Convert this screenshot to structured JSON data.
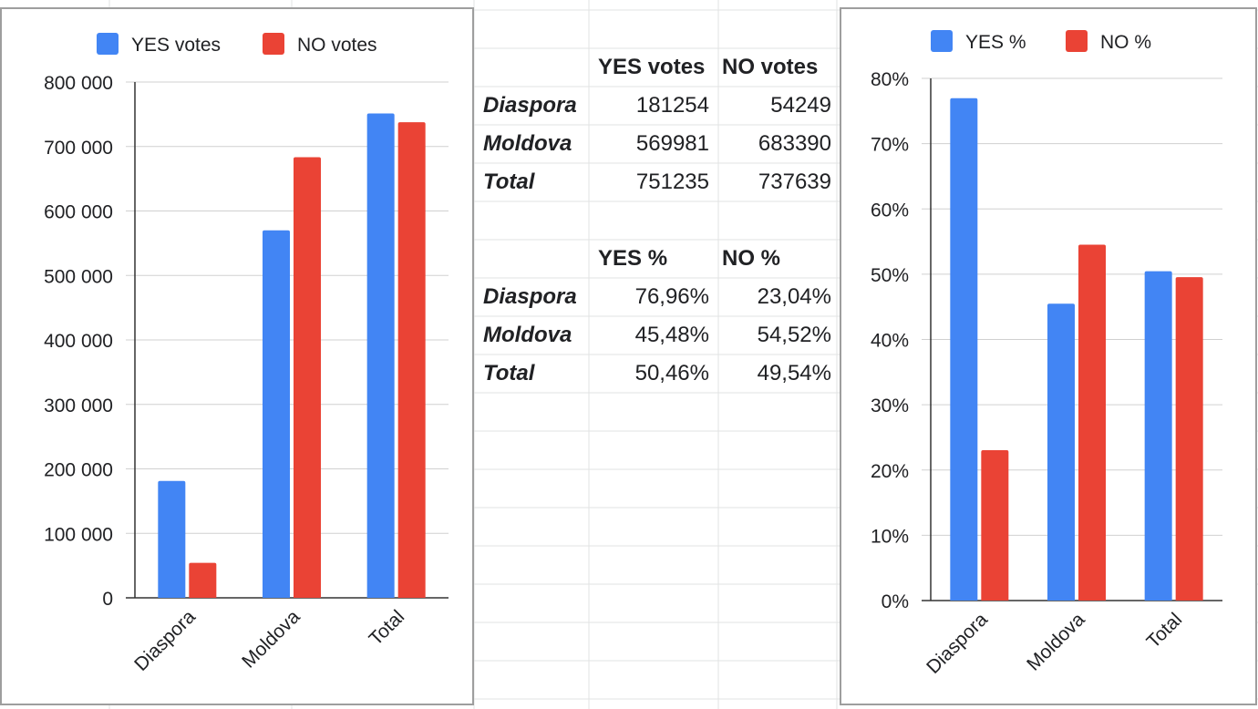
{
  "table": {
    "votes_headers": [
      "YES votes",
      "NO votes"
    ],
    "votes_rows": [
      {
        "label": "Diaspora",
        "yes": "181254",
        "no": "54249"
      },
      {
        "label": "Moldova",
        "yes": "569981",
        "no": "683390"
      },
      {
        "label": "Total",
        "yes": "751235",
        "no": "737639"
      }
    ],
    "pct_headers": [
      "YES %",
      "NO %"
    ],
    "pct_rows": [
      {
        "label": "Diaspora",
        "yes": "76,96%",
        "no": "23,04%"
      },
      {
        "label": "Moldova",
        "yes": "45,48%",
        "no": "54,52%"
      },
      {
        "label": "Total",
        "yes": "50,46%",
        "no": "49,54%"
      }
    ]
  },
  "chart_data": [
    {
      "type": "bar",
      "categories": [
        "Diaspora",
        "Moldova",
        "Total"
      ],
      "series": [
        {
          "name": "YES votes",
          "color": "#4285f4",
          "values": [
            181254,
            569981,
            751235
          ]
        },
        {
          "name": "NO votes",
          "color": "#ea4335",
          "values": [
            54249,
            683390,
            737639
          ]
        }
      ],
      "ylim": [
        0,
        800000
      ],
      "yticks": [
        0,
        100000,
        200000,
        300000,
        400000,
        500000,
        600000,
        700000,
        800000
      ],
      "ytick_labels": [
        "0",
        "100 000",
        "200 000",
        "300 000",
        "400 000",
        "500 000",
        "600 000",
        "700 000",
        "800 000"
      ],
      "legend_position": "top-center",
      "grid": true
    },
    {
      "type": "bar",
      "categories": [
        "Diaspora",
        "Moldova",
        "Total"
      ],
      "series": [
        {
          "name": "YES %",
          "color": "#4285f4",
          "values": [
            76.96,
            45.48,
            50.46
          ]
        },
        {
          "name": "NO %",
          "color": "#ea4335",
          "values": [
            23.04,
            54.52,
            49.54
          ]
        }
      ],
      "ylim": [
        0,
        80
      ],
      "yticks": [
        0,
        10,
        20,
        30,
        40,
        50,
        60,
        70,
        80
      ],
      "ytick_labels": [
        "0%",
        "10%",
        "20%",
        "30%",
        "40%",
        "50%",
        "60%",
        "70%",
        "80%"
      ],
      "legend_position": "top-center",
      "grid": true
    }
  ]
}
